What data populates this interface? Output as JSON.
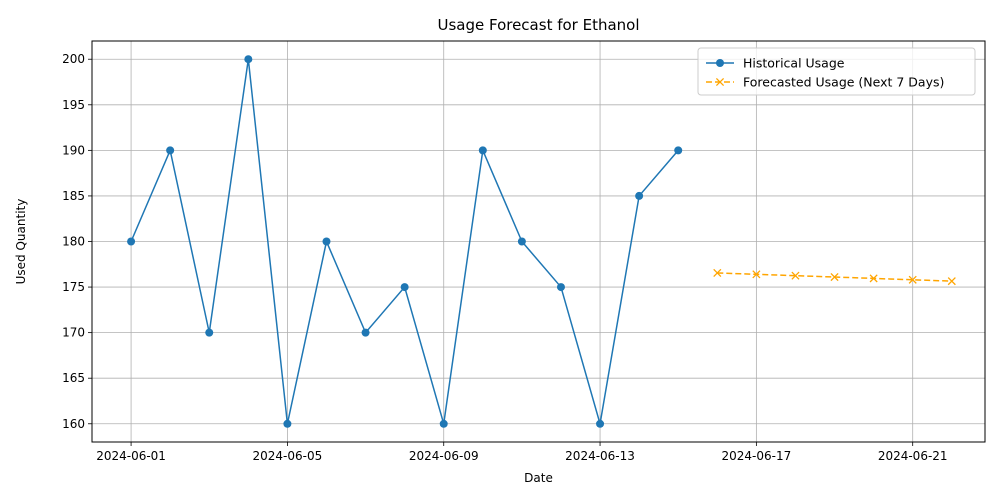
{
  "chart_data": {
    "type": "line",
    "title": "Usage Forecast for Ethanol",
    "xlabel": "Date",
    "ylabel": "Used Quantity",
    "ylim": [
      158,
      202
    ],
    "xlim": [
      "2024-05-31",
      "2024-06-22"
    ],
    "x_ticks": [
      "2024-06-01",
      "2024-06-05",
      "2024-06-09",
      "2024-06-13",
      "2024-06-17",
      "2024-06-21"
    ],
    "y_ticks": [
      160,
      165,
      170,
      175,
      180,
      185,
      190,
      195,
      200
    ],
    "grid": true,
    "legend_position": "top-right",
    "series": [
      {
        "name": "Historical Usage",
        "color": "#1f77b4",
        "marker": "circle",
        "line_style": "solid",
        "x": [
          "2024-06-01",
          "2024-06-02",
          "2024-06-03",
          "2024-06-04",
          "2024-06-05",
          "2024-06-06",
          "2024-06-07",
          "2024-06-08",
          "2024-06-09",
          "2024-06-10",
          "2024-06-11",
          "2024-06-12",
          "2024-06-13",
          "2024-06-14",
          "2024-06-15"
        ],
        "values": [
          180,
          190,
          170,
          200,
          160,
          180,
          170,
          175,
          160,
          190,
          180,
          175,
          160,
          185,
          190
        ]
      },
      {
        "name": "Forecasted Usage (Next 7 Days)",
        "color": "#ffa500",
        "marker": "x",
        "line_style": "dashed",
        "x": [
          "2024-06-16",
          "2024-06-17",
          "2024-06-18",
          "2024-06-19",
          "2024-06-20",
          "2024-06-21",
          "2024-06-22"
        ],
        "values": [
          176.55,
          176.4,
          176.25,
          176.1,
          175.95,
          175.8,
          175.65
        ]
      }
    ]
  }
}
